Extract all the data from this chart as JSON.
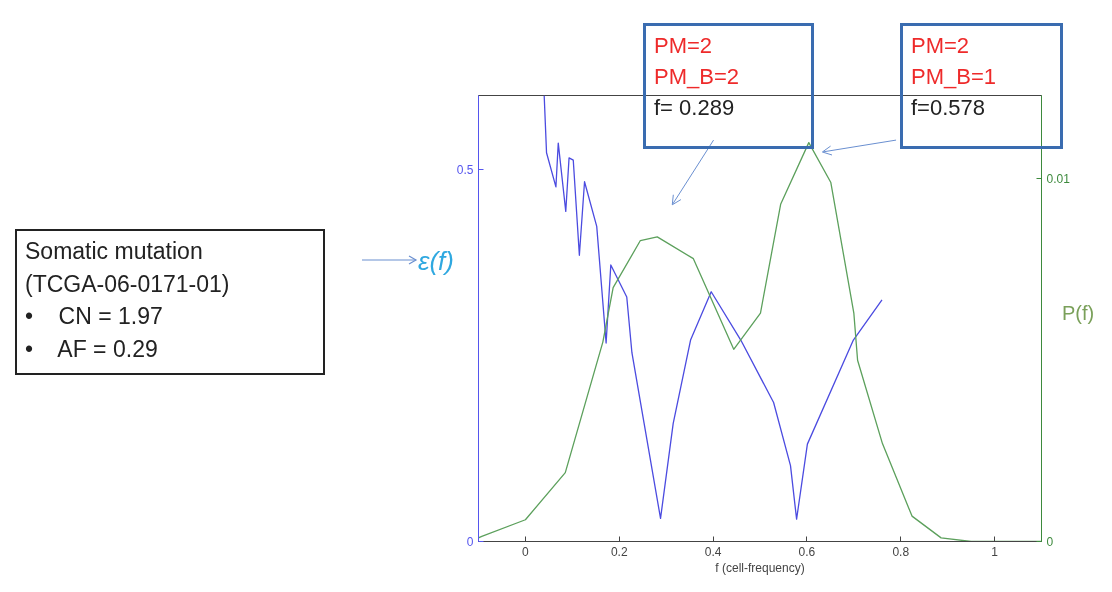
{
  "chart_data": {
    "type": "line",
    "xlabel": "f (cell-frequency)",
    "ylabel": "ε(f)",
    "y2label": "P(f)",
    "annotations": [
      "Somatic mutation\n(TCGA-06-0171-01)\n•    CN = 1.97\n•    AF = 0.29",
      "PM=2\nPM_B=2\nf= 0.289",
      "PM=2\nPM_B=1\nf=0.578"
    ],
    "xlim": [
      -0.1,
      1.1
    ],
    "xticks": [
      0,
      0.2,
      0.4,
      0.6,
      0.8,
      1
    ],
    "ylim": [
      0,
      0.6
    ],
    "yticks": [
      0,
      0.5
    ],
    "y2lim": [
      0,
      0.0123
    ],
    "y2ticks": [
      0,
      0.01
    ],
    "series": [
      {
        "color": "#4b4be0",
        "axis": "y",
        "x": [
          0.04,
          0.045,
          0.065,
          0.07,
          0.086,
          0.093,
          0.102,
          0.115,
          0.126,
          0.152,
          0.172,
          0.182,
          0.216,
          0.227,
          0.253,
          0.288,
          0.315,
          0.352,
          0.396,
          0.459,
          0.529,
          0.565,
          0.578,
          0.601,
          0.699,
          0.76
        ],
        "values": [
          0.6,
          0.523,
          0.477,
          0.536,
          0.444,
          0.516,
          0.513,
          0.385,
          0.484,
          0.424,
          0.267,
          0.372,
          0.329,
          0.254,
          0.159,
          0.031,
          0.159,
          0.271,
          0.336,
          0.271,
          0.187,
          0.102,
          0.03,
          0.131,
          0.271,
          0.325
        ]
      },
      {
        "color": "#5ca05c",
        "axis": "y2",
        "x": [
          -0.1,
          -0.093,
          0,
          0.085,
          0.165,
          0.187,
          0.245,
          0.281,
          0.358,
          0.444,
          0.501,
          0.544,
          0.604,
          0.651,
          0.7,
          0.708,
          0.761,
          0.824,
          0.886,
          0.95,
          1.1
        ],
        "values": [
          0.0001,
          0.00014,
          0.0006,
          0.0019,
          0.0055,
          0.007,
          0.0083,
          0.0084,
          0.0078,
          0.0053,
          0.0063,
          0.0093,
          0.011,
          0.0099,
          0.0063,
          0.005,
          0.0027,
          0.0007,
          0.0001,
          0,
          0
        ]
      }
    ]
  }
}
